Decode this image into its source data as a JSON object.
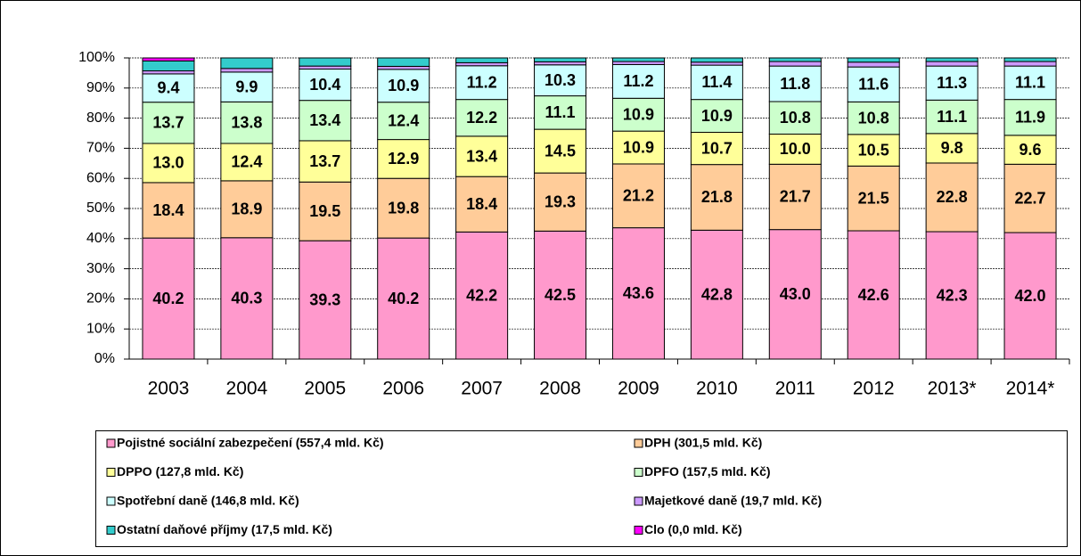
{
  "chart_data": {
    "type": "stacked_bar",
    "categories": [
      "2003",
      "2004",
      "2005",
      "2006",
      "2007",
      "2008",
      "2009",
      "2010",
      "2011",
      "2012",
      "2013*",
      "2014*"
    ],
    "series": [
      {
        "name": "Pojistné sociální zabezpečení (557,4 mld. Kč)",
        "color": "#ff99cc",
        "values": [
          40.2,
          40.3,
          39.3,
          40.2,
          42.2,
          42.5,
          43.6,
          42.8,
          43.0,
          42.6,
          42.3,
          42.0
        ],
        "value_labels": [
          "40.2",
          "40.3",
          "39.3",
          "40.2",
          "42.2",
          "42.5",
          "43.6",
          "42.8",
          "43.0",
          "42.6",
          "42.3",
          "42.0"
        ]
      },
      {
        "name": "DPH (301,5 mld. Kč)",
        "color": "#ffcc99",
        "values": [
          18.4,
          18.9,
          19.5,
          19.8,
          18.4,
          19.3,
          21.2,
          21.8,
          21.7,
          21.5,
          22.8,
          22.7
        ],
        "value_labels": [
          "18.4",
          "18.9",
          "19.5",
          "19.8",
          "18.4",
          "19.3",
          "21.2",
          "21.8",
          "21.7",
          "21.5",
          "22.8",
          "22.7"
        ]
      },
      {
        "name": "DPPO (127,8 mld. Kč)",
        "color": "#ffff99",
        "values": [
          13.0,
          12.4,
          13.7,
          12.9,
          13.4,
          14.5,
          10.9,
          10.7,
          10.0,
          10.5,
          9.8,
          9.6
        ],
        "value_labels": [
          "13.0",
          "12.4",
          "13.7",
          "12.9",
          "13.4",
          "14.5",
          "10.9",
          "10.7",
          "10.0",
          "10.5",
          "9.8",
          "9.6"
        ]
      },
      {
        "name": "DPFO (157,5 mld. Kč)",
        "color": "#ccffcc",
        "values": [
          13.7,
          13.8,
          13.4,
          12.4,
          12.2,
          11.1,
          10.9,
          10.9,
          10.8,
          10.8,
          11.1,
          11.9
        ],
        "value_labels": [
          "13.7",
          "13.8",
          "13.4",
          "12.4",
          "12.2",
          "11.1",
          "10.9",
          "10.9",
          "10.8",
          "10.8",
          "11.1",
          "11.9"
        ]
      },
      {
        "name": "Spotřební daně (146,8 mld. Kč)",
        "color": "#ccffff",
        "values": [
          9.4,
          9.9,
          10.4,
          10.9,
          11.2,
          10.3,
          11.2,
          11.4,
          11.8,
          11.6,
          11.3,
          11.1
        ],
        "value_labels": [
          "9.4",
          "9.9",
          "10.4",
          "10.9",
          "11.2",
          "10.3",
          "11.2",
          "11.4",
          "11.8",
          "11.6",
          "11.3",
          "11.1"
        ]
      },
      {
        "name": "Majetkové daně (19,7 mld. Kč)",
        "color": "#cc99ff",
        "values": [
          1.0,
          1.2,
          1.0,
          1.0,
          1.0,
          1.0,
          1.0,
          1.0,
          1.5,
          1.6,
          1.5,
          1.5
        ]
      },
      {
        "name": "Ostatní daňové příjmy (17,5 mld. Kč)",
        "color": "#33cccc",
        "values": [
          3.3,
          3.5,
          2.7,
          2.8,
          1.6,
          1.3,
          1.2,
          1.4,
          1.2,
          1.4,
          1.2,
          1.2
        ]
      },
      {
        "name": "Clo (0,0 mld. Kč)",
        "color": "#ff00ff",
        "values": [
          1.0,
          0,
          0,
          0,
          0,
          0,
          0,
          0,
          0,
          0,
          0,
          0
        ]
      }
    ],
    "ylim": [
      0,
      100
    ],
    "yticks": [
      {
        "value": 0,
        "label": "0%"
      },
      {
        "value": 10,
        "label": "10%"
      },
      {
        "value": 20,
        "label": "20%"
      },
      {
        "value": 30,
        "label": "30%"
      },
      {
        "value": 40,
        "label": "40%"
      },
      {
        "value": 50,
        "label": "50%"
      },
      {
        "value": 60,
        "label": "60%"
      },
      {
        "value": 70,
        "label": "70%"
      },
      {
        "value": 80,
        "label": "80%"
      },
      {
        "value": 90,
        "label": "90%"
      },
      {
        "value": 100,
        "label": "100%"
      }
    ],
    "grid": true,
    "legend": "bottom"
  }
}
